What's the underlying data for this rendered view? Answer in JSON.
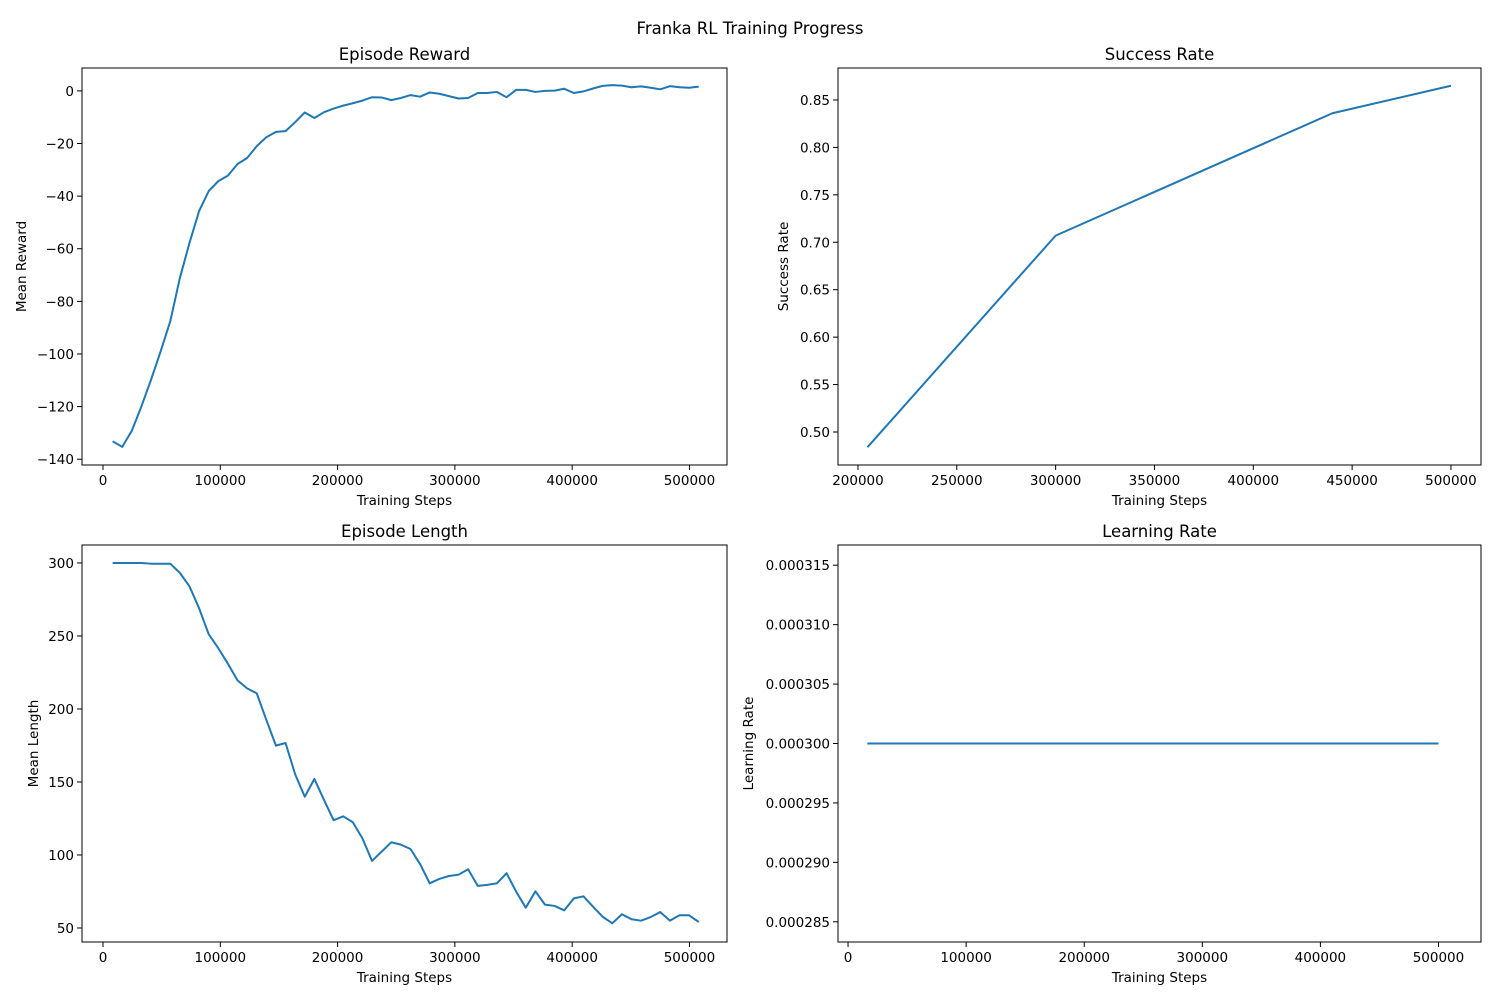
{
  "figure_title": "Franka RL Training Progress",
  "line_color": "#1f77b4",
  "chart_data": [
    {
      "type": "line",
      "title": "Episode Reward",
      "xlabel": "Training Steps",
      "ylabel": "Mean Reward",
      "xlim": [
        -17900,
        532000
      ],
      "ylim": [
        -142.2,
        8.7
      ],
      "grid": false,
      "xticks": [
        0,
        100000,
        200000,
        300000,
        400000,
        500000
      ],
      "xtick_labels": [
        "0",
        "100000",
        "200000",
        "300000",
        "400000",
        "500000"
      ],
      "yticks": [
        -140,
        -120,
        -100,
        -80,
        -60,
        -40,
        -20,
        0
      ],
      "ytick_labels": [
        "−140",
        "−120",
        "−100",
        "−80",
        "−60",
        "−40",
        "−20",
        "0"
      ],
      "x_step": 8192,
      "values": [
        -133.2,
        -135.3,
        -129.2,
        -119.9,
        -109.8,
        -99.0,
        -87.6,
        -71.1,
        -57.8,
        -45.7,
        -38.1,
        -34.3,
        -32.2,
        -27.8,
        -25.5,
        -21.0,
        -17.6,
        -15.6,
        -15.3,
        -11.9,
        -8.2,
        -10.3,
        -8.1,
        -6.7,
        -5.6,
        -4.7,
        -3.7,
        -2.4,
        -2.5,
        -3.5,
        -2.7,
        -1.6,
        -2.2,
        -0.6,
        -1.1,
        -2.0,
        -2.9,
        -2.7,
        -0.8,
        -0.8,
        -0.4,
        -2.4,
        0.4,
        0.4,
        -0.4,
        0.0,
        0.1,
        0.8,
        -0.8,
        -0.2,
        0.9,
        1.9,
        2.2,
        2.0,
        1.4,
        1.7,
        1.2,
        0.6,
        1.8,
        1.4,
        1.2,
        1.6
      ]
    },
    {
      "type": "line",
      "title": "Success Rate",
      "xlabel": "Training Steps",
      "ylabel": "Success Rate",
      "xlim": [
        189900,
        515200
      ],
      "ylim": [
        0.4652,
        0.8837
      ],
      "grid": false,
      "xticks": [
        200000,
        250000,
        300000,
        350000,
        400000,
        450000,
        500000
      ],
      "xtick_labels": [
        "200000",
        "250000",
        "300000",
        "350000",
        "400000",
        "450000",
        "500000"
      ],
      "yticks": [
        0.5,
        0.55,
        0.6,
        0.65,
        0.7,
        0.75,
        0.8,
        0.85
      ],
      "ytick_labels": [
        "0.50",
        "0.55",
        "0.60",
        "0.65",
        "0.70",
        "0.75",
        "0.80",
        "0.85"
      ],
      "x": [
        204800,
        300000,
        440000,
        500000
      ],
      "values": [
        0.484,
        0.707,
        0.836,
        0.865
      ]
    },
    {
      "type": "line",
      "title": "Episode Length",
      "xlabel": "Training Steps",
      "ylabel": "Mean Length",
      "xlim": [
        -17900,
        532000
      ],
      "ylim": [
        40.4,
        312.3
      ],
      "grid": false,
      "xticks": [
        0,
        100000,
        200000,
        300000,
        400000,
        500000
      ],
      "xtick_labels": [
        "0",
        "100000",
        "200000",
        "300000",
        "400000",
        "500000"
      ],
      "yticks": [
        50,
        100,
        150,
        200,
        250,
        300
      ],
      "ytick_labels": [
        "50",
        "100",
        "150",
        "200",
        "250",
        "300"
      ],
      "x_step": 8192,
      "values": [
        300,
        300,
        300,
        300,
        299.5,
        299.5,
        299.5,
        293.2,
        284.0,
        269.0,
        251.2,
        241.6,
        231.0,
        219.6,
        214.1,
        210.7,
        192.5,
        174.9,
        176.7,
        155.2,
        139.9,
        152.1,
        137.7,
        123.8,
        126.5,
        122.4,
        111.4,
        95.9,
        102.3,
        108.7,
        107.1,
        104.1,
        93.8,
        80.6,
        83.6,
        85.6,
        86.5,
        90.2,
        78.8,
        79.5,
        80.6,
        87.5,
        74.9,
        63.9,
        75.1,
        66.0,
        65.1,
        62.1,
        70.3,
        71.7,
        64.6,
        57.7,
        53.2,
        59.4,
        56.0,
        55.0,
        57.5,
        60.9,
        55.0,
        58.7,
        58.7,
        54.1
      ]
    },
    {
      "type": "line",
      "title": "Learning Rate",
      "xlabel": "Training Steps",
      "ylabel": "Learning Rate",
      "xlim": [
        -8500,
        536000
      ],
      "ylim": [
        0.0002833,
        0.0003167
      ],
      "grid": false,
      "xticks": [
        0,
        100000,
        200000,
        300000,
        400000,
        500000
      ],
      "xtick_labels": [
        "0",
        "100000",
        "200000",
        "300000",
        "400000",
        "500000"
      ],
      "yticks": [
        0.000285,
        0.00029,
        0.000295,
        0.0003,
        0.000305,
        0.00031,
        0.000315
      ],
      "ytick_labels": [
        "0.000285",
        "0.000290",
        "0.000295",
        "0.000300",
        "0.000305",
        "0.000310",
        "0.000315"
      ],
      "x": [
        16384,
        500000
      ],
      "values": [
        0.0003,
        0.0003
      ]
    }
  ]
}
